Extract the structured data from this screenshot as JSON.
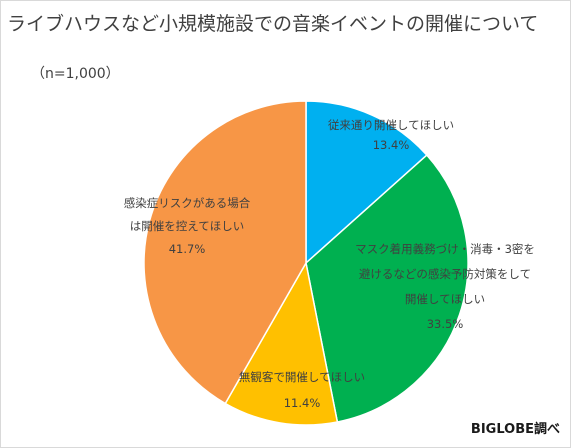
{
  "title": "ライブハウスなど小規模施設での音楽イベントの開催について",
  "sample": "（n=1,000）",
  "source": "BIGLOBE調べ",
  "chart_data": {
    "type": "pie",
    "title": "ライブハウスなど小規模施設での音楽イベントの開催について",
    "subtitle": "（n=1,000）",
    "slices": [
      {
        "label": [
          "従来通り開催してほしい"
        ],
        "value": 13.4,
        "display": "13.4%",
        "color": "#00b0f0"
      },
      {
        "label": [
          "マスク着用義務づけ・消毒・3密を",
          "避けるなどの感染予防対策をして",
          "開催してほしい"
        ],
        "value": 33.5,
        "display": "33.5%",
        "color": "#00b050"
      },
      {
        "label": [
          "無観客で開催してほしい"
        ],
        "value": 11.4,
        "display": "11.4%",
        "color": "#ffc000"
      },
      {
        "label": [
          "感染症リスクがある場合",
          "は開催を控えてほしい"
        ],
        "value": 41.7,
        "display": "41.7%",
        "color": "#f79646"
      }
    ],
    "start_angle": "12 o'clock",
    "direction": "clockwise",
    "legend": "none"
  }
}
